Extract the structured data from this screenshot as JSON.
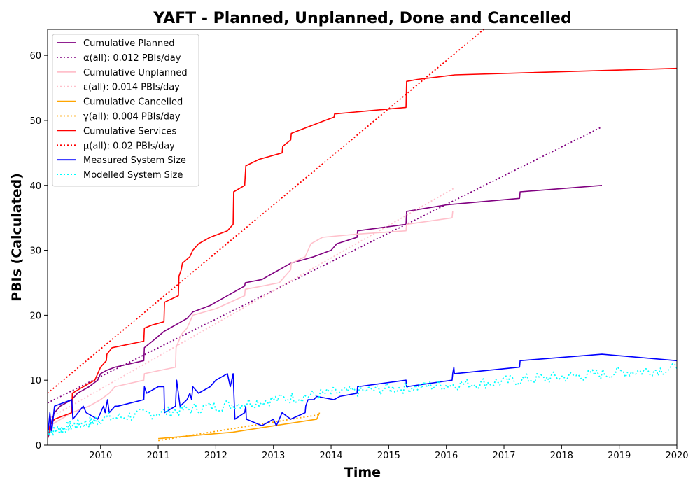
{
  "chart_data": {
    "type": "line",
    "title": "YAFT - Planned, Unplanned, Done  and Cancelled",
    "xlabel": "Time",
    "ylabel": "PBIs (Calculated)",
    "xlim": [
      2009.08,
      2020.0
    ],
    "ylim": [
      0,
      64
    ],
    "x_ticks": [
      2010,
      2011,
      2012,
      2013,
      2014,
      2015,
      2016,
      2017,
      2018,
      2019,
      2020
    ],
    "y_ticks": [
      0,
      10,
      20,
      30,
      40,
      50,
      60
    ],
    "grid": false,
    "legend_placement": "top-left",
    "series": [
      {
        "name": "Cumulative Planned",
        "color": "#800080",
        "style": "solid",
        "points": [
          [
            2009.08,
            1
          ],
          [
            2009.12,
            2
          ],
          [
            2009.16,
            4
          ],
          [
            2009.2,
            5
          ],
          [
            2009.3,
            6
          ],
          [
            2009.5,
            7
          ],
          [
            2009.6,
            8
          ],
          [
            2009.8,
            9
          ],
          [
            2009.95,
            10
          ],
          [
            2010.0,
            11
          ],
          [
            2010.1,
            11.5
          ],
          [
            2010.25,
            12
          ],
          [
            2010.5,
            12.5
          ],
          [
            2010.75,
            13
          ],
          [
            2010.76,
            15
          ],
          [
            2010.9,
            16
          ],
          [
            2011.1,
            17.5
          ],
          [
            2011.3,
            18.5
          ],
          [
            2011.5,
            19.5
          ],
          [
            2011.6,
            20.5
          ],
          [
            2011.9,
            21.5
          ],
          [
            2012.0,
            22
          ],
          [
            2012.3,
            23.5
          ],
          [
            2012.5,
            24.5
          ],
          [
            2012.51,
            25
          ],
          [
            2012.8,
            25.5
          ],
          [
            2013.0,
            26.5
          ],
          [
            2013.1,
            27
          ],
          [
            2013.3,
            28
          ],
          [
            2013.5,
            28.5
          ],
          [
            2013.7,
            29
          ],
          [
            2014.0,
            30
          ],
          [
            2014.1,
            31
          ],
          [
            2014.45,
            32
          ],
          [
            2014.46,
            33
          ],
          [
            2015.3,
            34
          ],
          [
            2015.31,
            36
          ],
          [
            2016.0,
            37
          ],
          [
            2017.27,
            38
          ],
          [
            2017.28,
            39
          ],
          [
            2018.7,
            40
          ]
        ]
      },
      {
        "name": "α(all): 0.012 PBIs/day",
        "color": "#800080",
        "style": "dotted",
        "points": [
          [
            2009.08,
            6.5
          ],
          [
            2018.7,
            49
          ]
        ]
      },
      {
        "name": "Cumulative Unplanned",
        "color": "#ffc0cb",
        "style": "solid",
        "points": [
          [
            2009.08,
            1
          ],
          [
            2009.12,
            3
          ],
          [
            2009.5,
            5
          ],
          [
            2009.8,
            6
          ],
          [
            2010.0,
            7
          ],
          [
            2010.15,
            8
          ],
          [
            2010.25,
            9
          ],
          [
            2010.75,
            10
          ],
          [
            2010.76,
            11
          ],
          [
            2011.3,
            12
          ],
          [
            2011.31,
            15
          ],
          [
            2011.4,
            17
          ],
          [
            2011.5,
            18
          ],
          [
            2011.6,
            20
          ],
          [
            2012.0,
            21
          ],
          [
            2012.5,
            23
          ],
          [
            2012.51,
            24
          ],
          [
            2013.1,
            25
          ],
          [
            2013.3,
            27
          ],
          [
            2013.31,
            28
          ],
          [
            2013.55,
            29
          ],
          [
            2013.6,
            30
          ],
          [
            2013.65,
            31
          ],
          [
            2013.85,
            32
          ],
          [
            2014.45,
            32.5
          ],
          [
            2015.3,
            33
          ],
          [
            2015.31,
            34
          ],
          [
            2016.1,
            35
          ],
          [
            2016.11,
            36
          ]
        ]
      },
      {
        "name": "ε(all): 0.014 PBIs/day",
        "color": "#ffc0cb",
        "style": "dotted",
        "points": [
          [
            2009.08,
            4
          ],
          [
            2016.12,
            39.5
          ]
        ]
      },
      {
        "name": "Cumulative Cancelled",
        "color": "#ffa500",
        "style": "solid",
        "points": [
          [
            2011.0,
            1
          ],
          [
            2012.3,
            2
          ],
          [
            2013.75,
            4
          ],
          [
            2013.8,
            5
          ]
        ]
      },
      {
        "name": "γ(all): 0.004 PBIs/day",
        "color": "#ffa500",
        "style": "dotted",
        "points": [
          [
            2011.0,
            0.7
          ],
          [
            2013.8,
            4.7
          ]
        ]
      },
      {
        "name": "Cumulative Services",
        "color": "#ff0000",
        "style": "solid",
        "points": [
          [
            2009.08,
            1
          ],
          [
            2009.12,
            3
          ],
          [
            2009.2,
            4
          ],
          [
            2009.5,
            5
          ],
          [
            2009.51,
            8
          ],
          [
            2009.7,
            9
          ],
          [
            2009.9,
            10
          ],
          [
            2010.0,
            12
          ],
          [
            2010.1,
            13
          ],
          [
            2010.11,
            14
          ],
          [
            2010.2,
            15
          ],
          [
            2010.75,
            16
          ],
          [
            2010.76,
            18
          ],
          [
            2010.9,
            18.5
          ],
          [
            2011.1,
            19
          ],
          [
            2011.11,
            22
          ],
          [
            2011.35,
            23
          ],
          [
            2011.36,
            26
          ],
          [
            2011.4,
            27
          ],
          [
            2011.42,
            28
          ],
          [
            2011.55,
            29
          ],
          [
            2011.6,
            30
          ],
          [
            2011.7,
            31
          ],
          [
            2011.9,
            32
          ],
          [
            2012.2,
            33
          ],
          [
            2012.3,
            34
          ],
          [
            2012.31,
            39
          ],
          [
            2012.5,
            40
          ],
          [
            2012.52,
            43
          ],
          [
            2012.75,
            44
          ],
          [
            2013.15,
            45
          ],
          [
            2013.16,
            46
          ],
          [
            2013.3,
            47
          ],
          [
            2013.31,
            48
          ],
          [
            2013.6,
            49
          ],
          [
            2013.9,
            50
          ],
          [
            2014.05,
            50.5
          ],
          [
            2014.06,
            51
          ],
          [
            2015.3,
            52
          ],
          [
            2015.31,
            56
          ],
          [
            2015.5,
            56.3
          ],
          [
            2016.15,
            57
          ],
          [
            2020.0,
            58
          ]
        ]
      },
      {
        "name": "μ(all): 0.02 PBIs/day",
        "color": "#ff0000",
        "style": "dotted",
        "points": [
          [
            2009.08,
            8
          ],
          [
            2016.65,
            64
          ]
        ]
      },
      {
        "name": "Measured System Size",
        "color": "#0000ff",
        "style": "solid",
        "points": [
          [
            2009.08,
            1
          ],
          [
            2009.1,
            3
          ],
          [
            2009.12,
            5
          ],
          [
            2009.15,
            2
          ],
          [
            2009.2,
            6
          ],
          [
            2009.5,
            7
          ],
          [
            2009.52,
            4
          ],
          [
            2009.7,
            6
          ],
          [
            2009.75,
            5
          ],
          [
            2009.95,
            4
          ],
          [
            2010.0,
            5
          ],
          [
            2010.05,
            6
          ],
          [
            2010.08,
            5
          ],
          [
            2010.12,
            7
          ],
          [
            2010.15,
            5
          ],
          [
            2010.25,
            6
          ],
          [
            2010.3,
            6
          ],
          [
            2010.75,
            7
          ],
          [
            2010.76,
            9
          ],
          [
            2010.8,
            8
          ],
          [
            2011.0,
            9
          ],
          [
            2011.1,
            9
          ],
          [
            2011.11,
            5
          ],
          [
            2011.3,
            6
          ],
          [
            2011.32,
            10
          ],
          [
            2011.38,
            6
          ],
          [
            2011.5,
            7
          ],
          [
            2011.55,
            8
          ],
          [
            2011.58,
            7
          ],
          [
            2011.6,
            9
          ],
          [
            2011.7,
            8
          ],
          [
            2011.9,
            9
          ],
          [
            2012.0,
            10
          ],
          [
            2012.2,
            11
          ],
          [
            2012.25,
            9
          ],
          [
            2012.3,
            11
          ],
          [
            2012.33,
            4
          ],
          [
            2012.5,
            5
          ],
          [
            2012.52,
            6
          ],
          [
            2012.53,
            4
          ],
          [
            2012.8,
            3
          ],
          [
            2013.0,
            4
          ],
          [
            2013.05,
            3
          ],
          [
            2013.1,
            4
          ],
          [
            2013.15,
            5
          ],
          [
            2013.3,
            4
          ],
          [
            2013.55,
            5
          ],
          [
            2013.56,
            6
          ],
          [
            2013.6,
            7
          ],
          [
            2013.7,
            7
          ],
          [
            2013.75,
            7.5
          ],
          [
            2014.05,
            7
          ],
          [
            2014.15,
            7.5
          ],
          [
            2014.45,
            8
          ],
          [
            2014.46,
            9
          ],
          [
            2015.3,
            10
          ],
          [
            2015.31,
            9
          ],
          [
            2016.1,
            10
          ],
          [
            2016.11,
            11
          ],
          [
            2016.13,
            12
          ],
          [
            2016.14,
            11
          ],
          [
            2017.27,
            12
          ],
          [
            2017.28,
            13
          ],
          [
            2018.7,
            14
          ],
          [
            2020.0,
            13
          ]
        ]
      },
      {
        "name": "Modelled System Size",
        "color": "#00ffff",
        "style": "dotted",
        "points": [
          [
            2009.08,
            2
          ],
          [
            2009.3,
            2.5
          ],
          [
            2009.5,
            3
          ],
          [
            2009.8,
            3.5
          ],
          [
            2010.0,
            4
          ],
          [
            2010.5,
            4.5
          ],
          [
            2011.0,
            5
          ],
          [
            2011.5,
            5.5
          ],
          [
            2012.0,
            6
          ],
          [
            2012.5,
            6.5
          ],
          [
            2013.0,
            7
          ],
          [
            2013.5,
            7.5
          ],
          [
            2014.0,
            8
          ],
          [
            2014.5,
            8.3
          ],
          [
            2015.0,
            8.7
          ],
          [
            2015.5,
            9
          ],
          [
            2016.0,
            9.3
          ],
          [
            2016.5,
            9.5
          ],
          [
            2017.0,
            9.8
          ],
          [
            2017.5,
            10.2
          ],
          [
            2018.0,
            10.5
          ],
          [
            2018.5,
            10.8
          ],
          [
            2019.0,
            11.2
          ],
          [
            2019.5,
            11.5
          ],
          [
            2020.0,
            11.8
          ]
        ],
        "noise": 0.9
      }
    ]
  }
}
